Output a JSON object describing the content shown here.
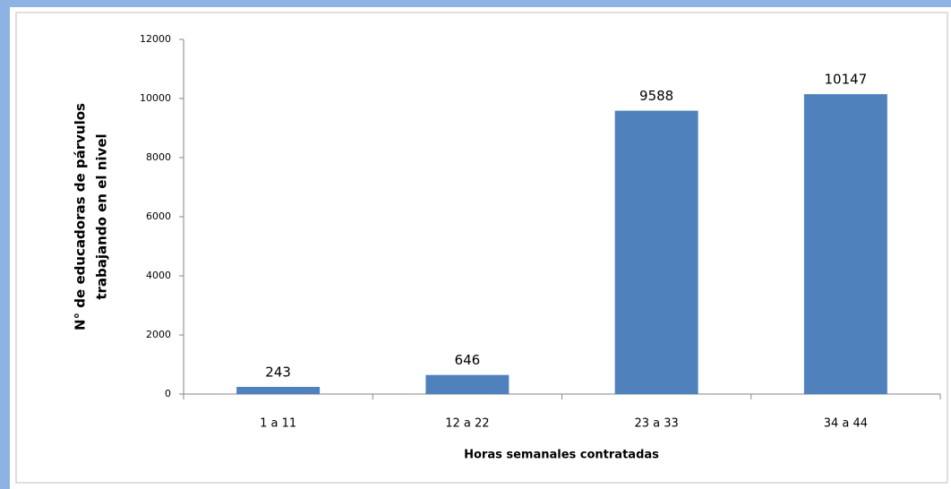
{
  "chart_data": {
    "type": "bar",
    "xlabel": "Horas semanales contratadas",
    "ylabel": [
      "N° de educadoras de párvulos",
      "trabajando en el nivel"
    ],
    "categories": [
      "1 a 11",
      "12 a 22",
      "23 a 33",
      "34 a 44"
    ],
    "values": [
      243,
      646,
      9588,
      10147
    ],
    "color": "#4f81bd",
    "ylim": [
      0,
      12000
    ],
    "yticks": [
      0,
      2000,
      4000,
      6000,
      8000,
      10000,
      12000
    ],
    "grid": false,
    "show_value_labels": true
  }
}
